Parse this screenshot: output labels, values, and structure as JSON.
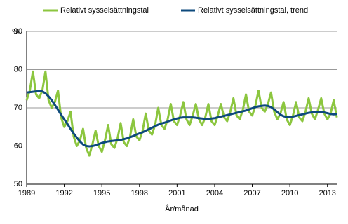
{
  "chart_data": {
    "type": "line",
    "y_label": "%",
    "x_label": "År/månad",
    "x": [
      1989,
      1989.25,
      1989.5,
      1989.75,
      1990,
      1990.25,
      1990.5,
      1990.75,
      1991,
      1991.25,
      1991.5,
      1991.75,
      1992,
      1992.25,
      1992.5,
      1992.75,
      1993,
      1993.25,
      1993.5,
      1993.75,
      1994,
      1994.25,
      1994.5,
      1994.75,
      1995,
      1995.25,
      1995.5,
      1995.75,
      1996,
      1996.25,
      1996.5,
      1996.75,
      1997,
      1997.25,
      1997.5,
      1997.75,
      1998,
      1998.25,
      1998.5,
      1998.75,
      1999,
      1999.25,
      1999.5,
      1999.75,
      2000,
      2000.25,
      2000.5,
      2000.75,
      2001,
      2001.25,
      2001.5,
      2001.75,
      2002,
      2002.25,
      2002.5,
      2002.75,
      2003,
      2003.25,
      2003.5,
      2003.75,
      2004,
      2004.25,
      2004.5,
      2004.75,
      2005,
      2005.25,
      2005.5,
      2005.75,
      2006,
      2006.25,
      2006.5,
      2006.75,
      2007,
      2007.25,
      2007.5,
      2007.75,
      2008,
      2008.25,
      2008.5,
      2008.75,
      2009,
      2009.25,
      2009.5,
      2009.75,
      2010,
      2010.25,
      2010.5,
      2010.75,
      2011,
      2011.25,
      2011.5,
      2011.75,
      2012,
      2012.25,
      2012.5,
      2012.75,
      2013,
      2013.25,
      2013.5,
      2013.75
    ],
    "series": [
      {
        "name": "Relativt sysselsättningstal",
        "color": "#8cc63f",
        "width": 3,
        "values": [
          72,
          74.5,
          79.5,
          73.5,
          72.5,
          74.5,
          79.5,
          72,
          70,
          71.5,
          74.5,
          67.5,
          65,
          66.5,
          69,
          62.5,
          60,
          61.5,
          64.5,
          59.5,
          57.5,
          60.5,
          64,
          60,
          58.5,
          61.5,
          65.5,
          60.5,
          59.5,
          62,
          66,
          61,
          60,
          62.5,
          67,
          62.5,
          61.5,
          64,
          68.5,
          64,
          63,
          65.5,
          70,
          65.5,
          64.5,
          67,
          71,
          66.5,
          65.5,
          68,
          71.5,
          67,
          65.5,
          68,
          71,
          67,
          65.5,
          67.5,
          71,
          66.5,
          65.5,
          68,
          71,
          67.5,
          66.5,
          69,
          72.5,
          68,
          67,
          69.5,
          73.5,
          69,
          68,
          70.5,
          74.5,
          70,
          69,
          71,
          74,
          69,
          67,
          68.5,
          71.5,
          67,
          65.5,
          68,
          71.5,
          67.5,
          66.5,
          69,
          72.5,
          68.5,
          67,
          69.5,
          72.5,
          68.5,
          67,
          68.5,
          72,
          67.5
        ]
      },
      {
        "name": "Relativt sysselsättningstal, trend",
        "color": "#0d4a7c",
        "width": 3,
        "values": [
          74,
          74.1,
          74.2,
          74.3,
          74.4,
          74.3,
          73.8,
          73,
          72,
          70.8,
          69.5,
          68.2,
          67,
          65.8,
          64.5,
          63.3,
          62.2,
          61.2,
          60.4,
          60,
          59.9,
          60,
          60.2,
          60.5,
          60.8,
          61,
          61.2,
          61.3,
          61.4,
          61.5,
          61.6,
          61.8,
          62,
          62.3,
          62.6,
          63,
          63.3,
          63.6,
          64,
          64.4,
          64.8,
          65.2,
          65.6,
          65.9,
          66.1,
          66.4,
          66.7,
          67,
          67.2,
          67.4,
          67.5,
          67.5,
          67.5,
          67.5,
          67.4,
          67.3,
          67.2,
          67.1,
          67.1,
          67.2,
          67.3,
          67.5,
          67.7,
          67.9,
          68.1,
          68.3,
          68.5,
          68.7,
          68.9,
          69.1,
          69.3,
          69.6,
          69.9,
          70.2,
          70.4,
          70.5,
          70.6,
          70.5,
          70.2,
          69.6,
          68.9,
          68.2,
          67.8,
          67.6,
          67.6,
          67.7,
          67.9,
          68.1,
          68.3,
          68.5,
          68.7,
          68.8,
          68.9,
          68.9,
          68.9,
          68.8,
          68.6,
          68.4,
          68.3,
          68.4
        ]
      }
    ],
    "xlim": [
      1989,
      2013.8
    ],
    "xticks": [
      1989,
      1992,
      1995,
      1998,
      2001,
      2004,
      2007,
      2010,
      2013
    ],
    "ylim": [
      50,
      90
    ],
    "yticks": [
      50,
      60,
      70,
      80,
      90
    ],
    "grid": true
  }
}
